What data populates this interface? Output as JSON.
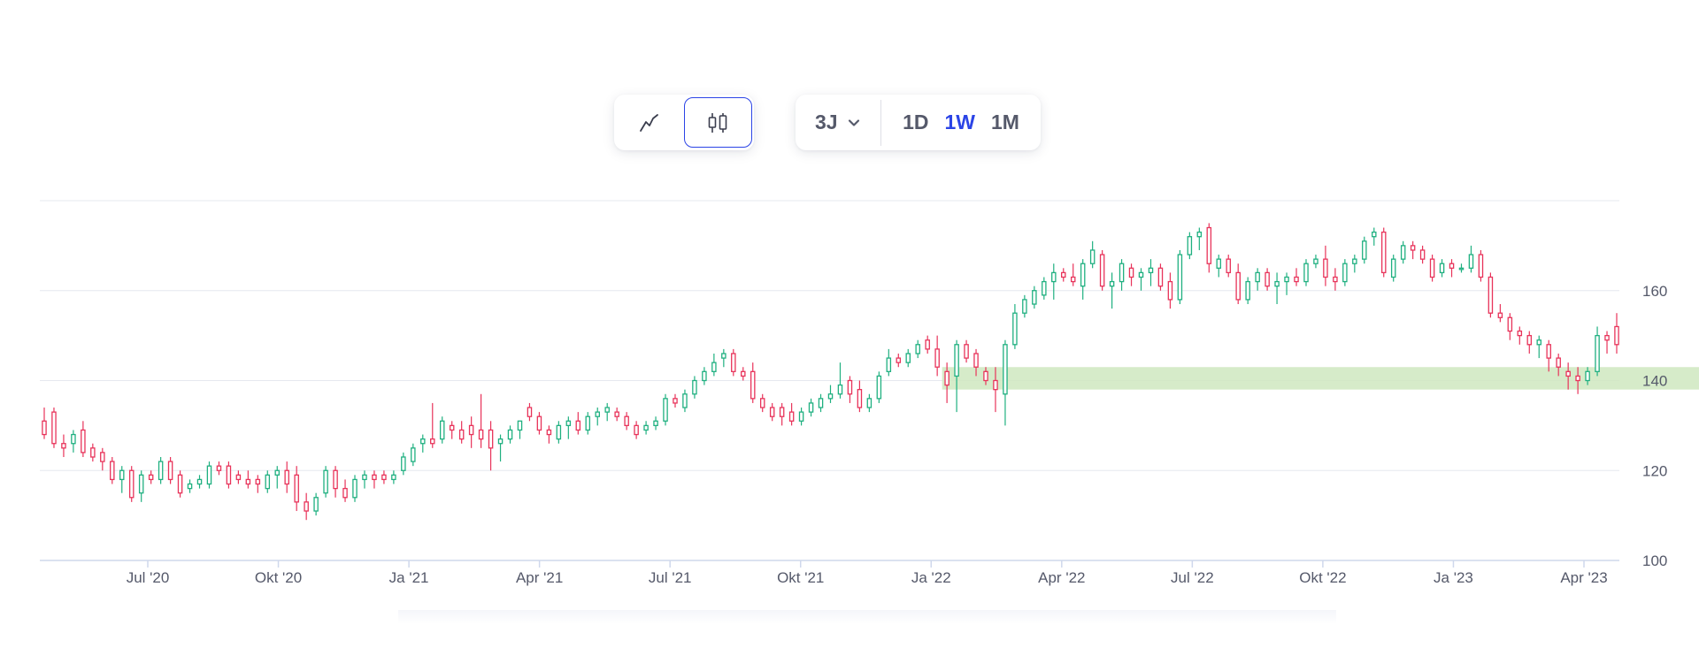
{
  "toolbar": {
    "chart_types": [
      {
        "name": "line",
        "icon": "line-chart-icon",
        "active": false
      },
      {
        "name": "candlestick",
        "icon": "candlestick-icon",
        "active": true
      }
    ],
    "range_label": "3J",
    "intervals": [
      {
        "label": "1D",
        "active": false
      },
      {
        "label": "1W",
        "active": true
      },
      {
        "label": "1M",
        "active": false
      }
    ]
  },
  "colors": {
    "up": "#1fb080",
    "down": "#e8335a",
    "accent": "#2b44e6",
    "zone": "#cfe8c0",
    "grid": "#e6e8ef"
  },
  "chart_data": {
    "type": "candlestick",
    "title": "",
    "xlabel": "",
    "ylabel": "",
    "ylim": [
      100,
      180
    ],
    "y_ticks": [
      100,
      120,
      140,
      160
    ],
    "x_ticks": [
      "Jul '20",
      "Okt '20",
      "Ja '21",
      "Apr '21",
      "Jul '21",
      "Okt '21",
      "Ja '22",
      "Apr '22",
      "Jul '22",
      "Okt '22",
      "Ja '23",
      "Apr '23"
    ],
    "highlight_band": {
      "from_index": 93,
      "to_index": 180,
      "y_low": 138,
      "y_high": 143
    },
    "legend": "none",
    "grid": true,
    "interval": "1W",
    "candles": [
      [
        131,
        134,
        127,
        128
      ],
      [
        133,
        134,
        125,
        126
      ],
      [
        126,
        128,
        123,
        125
      ],
      [
        126,
        129,
        124,
        128
      ],
      [
        129,
        131,
        123,
        124
      ],
      [
        125,
        126,
        122,
        123
      ],
      [
        124,
        125,
        120,
        122
      ],
      [
        122,
        123,
        117,
        118
      ],
      [
        118,
        121,
        115,
        120
      ],
      [
        120,
        121,
        113,
        114
      ],
      [
        115,
        120,
        113,
        119
      ],
      [
        119,
        120,
        117,
        118
      ],
      [
        118,
        123,
        117,
        122
      ],
      [
        122,
        123,
        117,
        118
      ],
      [
        119,
        120,
        114,
        115
      ],
      [
        116,
        118,
        115,
        117
      ],
      [
        117,
        119,
        116,
        118
      ],
      [
        117,
        122,
        116,
        121
      ],
      [
        121,
        122,
        119,
        120
      ],
      [
        121,
        122,
        116,
        117
      ],
      [
        119,
        120,
        117,
        118
      ],
      [
        118,
        120,
        116,
        117
      ],
      [
        118,
        119,
        115,
        117
      ],
      [
        116,
        120,
        115,
        119
      ],
      [
        119,
        121,
        116,
        120
      ],
      [
        120,
        122,
        115,
        117
      ],
      [
        119,
        121,
        111,
        113
      ],
      [
        113,
        115,
        109,
        111
      ],
      [
        111,
        115,
        110,
        114
      ],
      [
        115,
        121,
        114,
        120
      ],
      [
        120,
        121,
        114,
        116
      ],
      [
        116,
        118,
        113,
        114
      ],
      [
        114,
        119,
        113,
        118
      ],
      [
        118,
        120,
        116,
        119
      ],
      [
        119,
        120,
        116,
        118
      ],
      [
        119,
        120,
        117,
        118
      ],
      [
        118,
        120,
        117,
        119
      ],
      [
        120,
        124,
        119,
        123
      ],
      [
        122,
        126,
        121,
        125
      ],
      [
        126,
        128,
        124,
        127
      ],
      [
        127,
        135,
        125,
        126
      ],
      [
        127,
        132,
        126,
        131
      ],
      [
        130,
        131,
        127,
        129
      ],
      [
        129,
        131,
        126,
        127
      ],
      [
        130,
        132,
        125,
        128
      ],
      [
        129,
        137,
        125,
        127
      ],
      [
        129,
        131,
        120,
        125
      ],
      [
        126,
        128,
        122,
        127
      ],
      [
        127,
        130,
        126,
        129
      ],
      [
        129,
        131,
        127,
        131
      ],
      [
        134,
        135,
        131,
        132
      ],
      [
        132,
        133,
        128,
        129
      ],
      [
        129,
        130,
        126,
        128
      ],
      [
        127,
        131,
        126,
        130
      ],
      [
        130,
        132,
        127,
        131
      ],
      [
        131,
        133,
        128,
        129
      ],
      [
        129,
        133,
        128,
        132
      ],
      [
        132,
        134,
        130,
        133
      ],
      [
        133,
        135,
        131,
        134
      ],
      [
        133,
        134,
        131,
        132
      ],
      [
        132,
        133,
        129,
        130
      ],
      [
        130,
        131,
        127,
        128
      ],
      [
        129,
        131,
        128,
        130
      ],
      [
        130,
        132,
        129,
        131
      ],
      [
        131,
        137,
        130,
        136
      ],
      [
        136,
        137,
        134,
        135
      ],
      [
        134,
        138,
        133,
        137
      ],
      [
        137,
        141,
        136,
        140
      ],
      [
        140,
        143,
        139,
        142
      ],
      [
        142,
        146,
        141,
        144
      ],
      [
        145,
        147,
        143,
        146
      ],
      [
        146,
        147,
        141,
        142
      ],
      [
        142,
        143,
        140,
        141
      ],
      [
        142,
        144,
        135,
        136
      ],
      [
        136,
        137,
        133,
        134
      ],
      [
        134,
        135,
        131,
        132
      ],
      [
        134,
        135,
        130,
        132
      ],
      [
        133,
        135,
        130,
        131
      ],
      [
        131,
        134,
        130,
        133
      ],
      [
        133,
        136,
        132,
        135
      ],
      [
        134,
        137,
        133,
        136
      ],
      [
        136,
        139,
        135,
        137
      ],
      [
        137,
        144,
        136,
        139
      ],
      [
        140,
        141,
        135,
        137
      ],
      [
        138,
        140,
        133,
        134
      ],
      [
        134,
        137,
        133,
        136
      ],
      [
        136,
        142,
        135,
        141
      ],
      [
        142,
        147,
        141,
        145
      ],
      [
        145,
        146,
        143,
        144
      ],
      [
        144,
        147,
        143,
        146
      ],
      [
        146,
        149,
        145,
        148
      ],
      [
        149,
        150,
        146,
        147
      ],
      [
        147,
        150,
        141,
        143
      ],
      [
        142,
        144,
        135,
        139
      ],
      [
        141,
        149,
        133,
        148
      ],
      [
        148,
        149,
        144,
        145
      ],
      [
        146,
        147,
        141,
        143
      ],
      [
        142,
        143,
        139,
        140
      ],
      [
        140,
        143,
        133,
        138
      ],
      [
        137,
        149,
        130,
        148
      ],
      [
        148,
        157,
        147,
        155
      ],
      [
        155,
        159,
        154,
        158
      ],
      [
        157,
        161,
        156,
        160
      ],
      [
        159,
        163,
        158,
        162
      ],
      [
        162,
        166,
        158,
        164
      ],
      [
        164,
        165,
        162,
        163
      ],
      [
        163,
        166,
        161,
        162
      ],
      [
        161,
        167,
        158,
        166
      ],
      [
        166,
        171,
        165,
        169
      ],
      [
        168,
        169,
        160,
        161
      ],
      [
        161,
        164,
        156,
        162
      ],
      [
        162,
        167,
        160,
        166
      ],
      [
        165,
        166,
        161,
        163
      ],
      [
        163,
        165,
        160,
        164
      ],
      [
        164,
        167,
        161,
        165
      ],
      [
        165,
        166,
        160,
        161
      ],
      [
        162,
        164,
        156,
        158
      ],
      [
        158,
        169,
        157,
        168
      ],
      [
        168,
        173,
        167,
        172
      ],
      [
        172,
        174,
        169,
        173
      ],
      [
        174,
        175,
        164,
        166
      ],
      [
        165,
        168,
        163,
        167
      ],
      [
        167,
        168,
        163,
        164
      ],
      [
        164,
        166,
        157,
        158
      ],
      [
        158,
        163,
        157,
        162
      ],
      [
        162,
        165,
        160,
        164
      ],
      [
        164,
        165,
        160,
        161
      ],
      [
        161,
        164,
        157,
        162
      ],
      [
        162,
        164,
        159,
        163
      ],
      [
        163,
        165,
        161,
        162
      ],
      [
        162,
        167,
        161,
        166
      ],
      [
        166,
        168,
        165,
        167
      ],
      [
        167,
        170,
        161,
        163
      ],
      [
        163,
        165,
        160,
        162
      ],
      [
        162,
        167,
        161,
        166
      ],
      [
        166,
        168,
        164,
        167
      ],
      [
        167,
        172,
        166,
        171
      ],
      [
        172,
        174,
        170,
        173
      ],
      [
        173,
        174,
        163,
        164
      ],
      [
        163,
        168,
        162,
        167
      ],
      [
        167,
        171,
        166,
        170
      ],
      [
        170,
        171,
        167,
        169
      ],
      [
        169,
        170,
        166,
        167
      ],
      [
        167,
        168,
        162,
        163
      ],
      [
        164,
        167,
        163,
        166
      ],
      [
        166,
        167,
        163,
        165
      ],
      [
        165,
        166,
        164,
        165
      ],
      [
        165,
        170,
        164,
        168
      ],
      [
        168,
        169,
        162,
        163
      ],
      [
        163,
        164,
        154,
        155
      ],
      [
        155,
        157,
        153,
        154
      ],
      [
        154,
        155,
        149,
        151
      ],
      [
        151,
        152,
        148,
        150
      ],
      [
        150,
        151,
        146,
        148
      ],
      [
        148,
        150,
        145,
        149
      ],
      [
        148,
        149,
        142,
        145
      ],
      [
        145,
        146,
        141,
        143
      ],
      [
        142,
        144,
        138,
        141
      ],
      [
        141,
        143,
        137,
        140
      ],
      [
        140,
        143,
        139,
        142
      ],
      [
        142,
        152,
        141,
        150
      ],
      [
        150,
        151,
        146,
        149
      ],
      [
        152,
        155,
        146,
        148
      ]
    ]
  }
}
